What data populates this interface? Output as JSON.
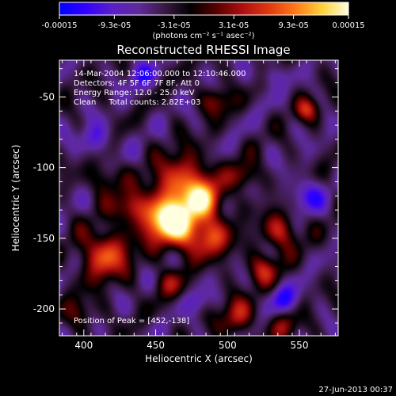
{
  "chart_data": {
    "type": "heatmap",
    "title": "Reconstructed RHESSI Image",
    "xlabel": "Heliocentric X (arcsec)",
    "ylabel": "Heliocentric Y (arcsec)",
    "xlim": [
      383,
      577
    ],
    "ylim": [
      -219,
      -24
    ],
    "x_ticks": [
      400,
      450,
      500,
      550
    ],
    "y_ticks": [
      -50,
      -100,
      -150,
      -200
    ],
    "colorbar": {
      "label": "(photons cm⁻² s⁻¹ asec⁻²)",
      "range": [
        -0.00015,
        0.00015
      ],
      "ticks": [
        {
          "value": -0.00015,
          "label": "-0.00015"
        },
        {
          "value": -9.3e-05,
          "label": "-9.3e-05"
        },
        {
          "value": -3.1e-05,
          "label": "-3.1e-05"
        },
        {
          "value": 3.1e-05,
          "label": "3.1e-05"
        },
        {
          "value": 9.3e-05,
          "label": "9.3e-05"
        },
        {
          "value": 0.00015,
          "label": "0.00015"
        }
      ],
      "colors": [
        "#0000ff",
        "#3300ff",
        "#5a1ec8",
        "#5e2a9c",
        "#3a1a44",
        "#000000",
        "#5a0000",
        "#b01010",
        "#e03a10",
        "#ff7a1a",
        "#ffd23a",
        "#ffffe0"
      ]
    },
    "annotations": [
      "14-Mar-2004 12:06:00.000 to 12:10:46.000",
      "Detectors: 4F 5F 6F 7F 8F, Att 0",
      "Energy Range: 12.0 - 25.0 keV",
      "Clean     Total counts: 2.82E+03"
    ],
    "peak_label": "Position of Peak = [452,-138]",
    "peak": {
      "x": 452,
      "y": -138
    },
    "timestamp": "27-Jun-2013 00:37",
    "sources": [
      {
        "x": 470,
        "y": -112,
        "sigma": 14,
        "value": 0.00013
      },
      {
        "x": 455,
        "y": -136,
        "sigma": 11,
        "value": 0.00015
      },
      {
        "x": 470,
        "y": -143,
        "sigma": 12,
        "value": 0.00012
      },
      {
        "x": 485,
        "y": -123,
        "sigma": 9,
        "value": 0.0001
      },
      {
        "x": 415,
        "y": -162,
        "sigma": 12,
        "value": 0.00012
      },
      {
        "x": 432,
        "y": -128,
        "sigma": 8,
        "value": 8e-05
      },
      {
        "x": 490,
        "y": -150,
        "sigma": 10,
        "value": 8e-05
      },
      {
        "x": 537,
        "y": -145,
        "sigma": 9,
        "value": 9e-05
      },
      {
        "x": 525,
        "y": -172,
        "sigma": 8,
        "value": 8e-05
      },
      {
        "x": 512,
        "y": -106,
        "sigma": 7,
        "value": 7e-05
      },
      {
        "x": 415,
        "y": -108,
        "sigma": 8,
        "value": 6e-05
      },
      {
        "x": 493,
        "y": -53,
        "sigma": 7,
        "value": 7e-05
      },
      {
        "x": 555,
        "y": -59,
        "sigma": 6,
        "value": 8e-05
      },
      {
        "x": 507,
        "y": -205,
        "sigma": 9,
        "value": 8e-05
      },
      {
        "x": 540,
        "y": -212,
        "sigma": 7,
        "value": 6e-05
      },
      {
        "x": 397,
        "y": -203,
        "sigma": 8,
        "value": 5e-05
      },
      {
        "x": 460,
        "y": -182,
        "sigma": 7,
        "value": 6e-05
      },
      {
        "x": 555,
        "y": -120,
        "sigma": 8,
        "value": -7e-05
      },
      {
        "x": 408,
        "y": -80,
        "sigma": 8,
        "value": -6e-05
      },
      {
        "x": 440,
        "y": -35,
        "sigma": 7,
        "value": -6e-05
      },
      {
        "x": 540,
        "y": -193,
        "sigma": 7,
        "value": -7e-05
      },
      {
        "x": 530,
        "y": -35,
        "sigma": 6,
        "value": -5e-05
      },
      {
        "x": 480,
        "y": -195,
        "sigma": 6,
        "value": -4e-05
      }
    ]
  }
}
